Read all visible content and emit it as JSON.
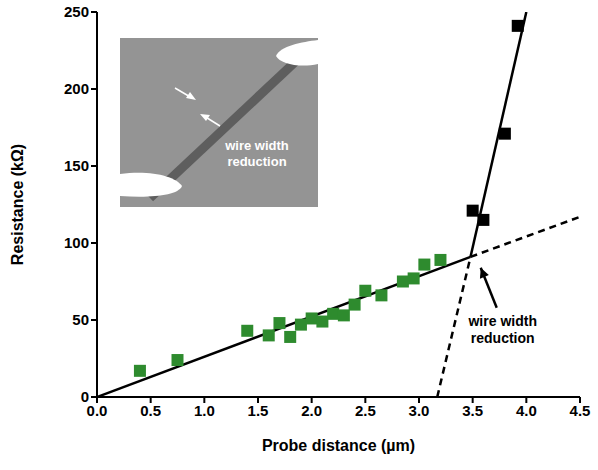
{
  "chart_data": {
    "type": "scatter",
    "x_label": "Probe distance (µm)",
    "y_label": "Resistance (kΩ)",
    "xlim": [
      0,
      4.5
    ],
    "xticks": [
      {
        "value": 0,
        "label": "0.0"
      },
      0.5,
      {
        "value": 1,
        "label": "1.0"
      },
      1.5,
      {
        "value": 2,
        "label": "2.0"
      },
      2.5,
      {
        "value": 3,
        "label": "3.0"
      },
      3.5,
      {
        "value": 4,
        "label": "4.0"
      },
      4.5
    ],
    "ylim": [
      0,
      250
    ],
    "yticks": [
      0,
      50,
      100,
      150,
      200,
      250
    ],
    "grid": false,
    "series": [
      {
        "color": "#2e8b2e",
        "marker": "square",
        "x": [
          0.4,
          0.75,
          1.4,
          1.6,
          1.7,
          1.8,
          1.9,
          2.0,
          2.1,
          2.2,
          2.3,
          2.4,
          2.5,
          2.65,
          2.85,
          2.95,
          3.05,
          3.2
        ],
        "values": [
          17,
          24,
          43,
          40,
          48,
          39,
          47,
          51,
          49,
          54,
          53,
          60,
          69,
          66,
          75,
          77,
          86,
          89
        ]
      },
      {
        "color": "#000000",
        "marker": "square",
        "x": [
          3.5,
          3.6,
          3.8,
          3.92
        ],
        "values": [
          121,
          115,
          171,
          241
        ]
      }
    ],
    "fit_lines": [
      {
        "color": "#000000",
        "line_style": "solid",
        "x": [
          0,
          3.48
        ],
        "values": [
          0,
          91
        ]
      },
      {
        "color": "#000000",
        "line_style": "dashed",
        "x": [
          3.48,
          4.5
        ],
        "values": [
          91,
          117
        ]
      },
      {
        "color": "#000000",
        "line_style": "dashed",
        "x": [
          3.17,
          3.48
        ],
        "values": [
          0,
          91
        ]
      },
      {
        "color": "#000000",
        "line_style": "solid",
        "x": [
          3.48,
          4.0
        ],
        "values": [
          91,
          250
        ]
      }
    ],
    "annotations": [
      {
        "text": "wire width reduction"
      }
    ],
    "inset": {
      "label": "wire width reduction"
    }
  }
}
